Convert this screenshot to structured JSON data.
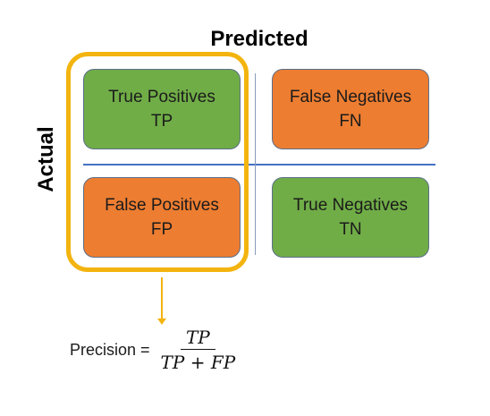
{
  "axis": {
    "predicted": "Predicted",
    "actual": "Actual"
  },
  "cells": {
    "tp": {
      "name": "True Positives",
      "abbr": "TP",
      "color": "#70ad47"
    },
    "fn": {
      "name": "False Negatives",
      "abbr": "FN",
      "color": "#ed7d31"
    },
    "fp": {
      "name": "False Positives",
      "abbr": "FP",
      "color": "#ed7d31"
    },
    "tn": {
      "name": "True Negatives",
      "abbr": "TN",
      "color": "#70ad47"
    }
  },
  "highlight_color": "#f3b40f",
  "formula": {
    "label": "Precision =",
    "numerator": "TP",
    "denominator": "TP + FP"
  }
}
